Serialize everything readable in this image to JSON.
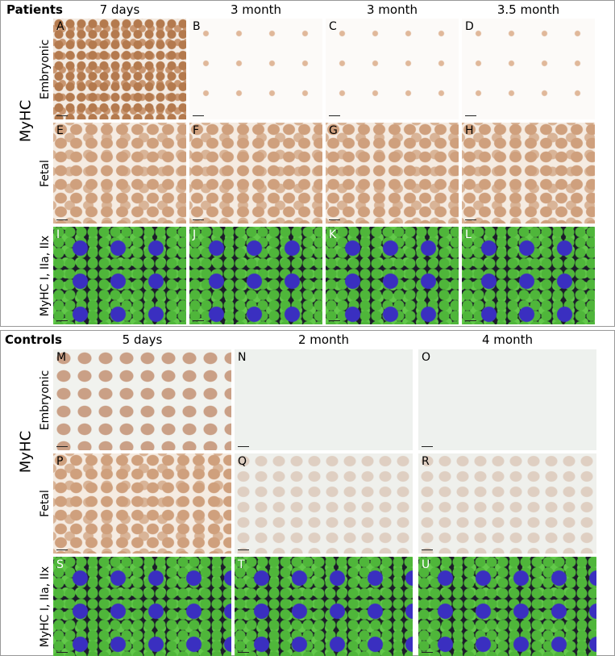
{
  "patients": {
    "label": "Patients",
    "group_label": "MyHC",
    "columns": [
      "7 days",
      "3 month",
      "3 month",
      "3.5 month"
    ],
    "rows": [
      "Embryonic",
      "Fetal",
      "MyHC I, IIa, IIx"
    ],
    "panels": [
      [
        "A",
        "B",
        "C",
        "D"
      ],
      [
        "E",
        "F",
        "G",
        "H"
      ],
      [
        "I",
        "J",
        "K",
        "L"
      ]
    ]
  },
  "controls": {
    "label": "Controls",
    "group_label": "MyHC",
    "columns": [
      "5 days",
      "2 month",
      "4 month"
    ],
    "rows": [
      "Embryonic",
      "Fetal",
      "MyHC I, IIa, IIx"
    ],
    "panels": [
      [
        "M",
        "N",
        "O"
      ],
      [
        "P",
        "Q",
        "R"
      ],
      [
        "S",
        "T",
        "U"
      ]
    ]
  }
}
